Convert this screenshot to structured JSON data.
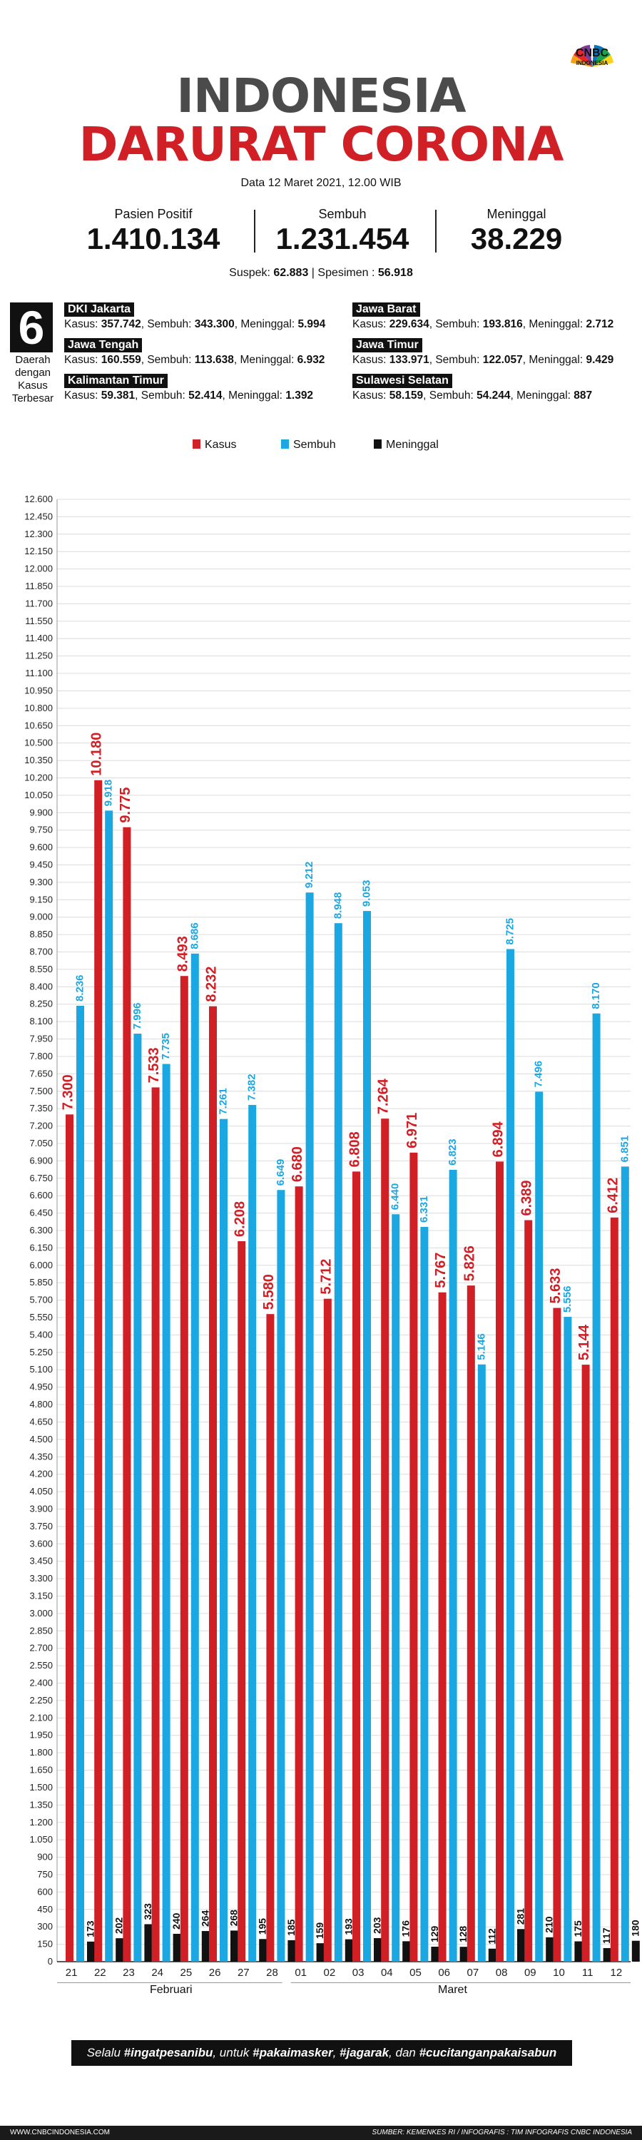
{
  "brand": {
    "logo_text": "CNBC",
    "logo_sub": "INDONESIA"
  },
  "title": {
    "line1": "INDONESIA",
    "line2": "DARURAT CORONA"
  },
  "date": "Data 12 Maret 2021, 12.00 WIB",
  "stats": [
    {
      "label": "Pasien Positif",
      "value": "1.410.134"
    },
    {
      "label": "Sembuh",
      "value": "1.231.454"
    },
    {
      "label": "Meninggal",
      "value": "38.229"
    }
  ],
  "suspek": {
    "label1": "Suspek:",
    "value1": "62.883",
    "sep": "|",
    "label2": "Spesimen :",
    "value2": "56.918"
  },
  "regions_box": {
    "number": "6",
    "caption": "Daerah dengan Kasus Terbesar"
  },
  "regions": [
    {
      "name": "DKI Jakarta",
      "kasus": "357.742",
      "sembuh": "343.300",
      "meninggal": "5.994"
    },
    {
      "name": "Jawa Barat",
      "kasus": "229.634",
      "sembuh": "193.816",
      "meninggal": "2.712"
    },
    {
      "name": "Jawa Tengah",
      "kasus": "160.559",
      "sembuh": "113.638",
      "meninggal": "6.932"
    },
    {
      "name": "Jawa Timur",
      "kasus": "133.971",
      "sembuh": "122.057",
      "meninggal": "9.429"
    },
    {
      "name": "Kalimantan Timur",
      "kasus": "59.381",
      "sembuh": "52.414",
      "meninggal": "1.392"
    },
    {
      "name": "Sulawesi Selatan",
      "kasus": "58.159",
      "sembuh": "54.244",
      "meninggal": "887"
    }
  ],
  "region_labels": {
    "kasus": "Kasus:",
    "sembuh": "Sembuh:",
    "meninggal": "Meninggal:"
  },
  "legend": [
    {
      "name": "Kasus",
      "color": "#d11f26"
    },
    {
      "name": "Sembuh",
      "color": "#1ba7e1"
    },
    {
      "name": "Meninggal",
      "color": "#111111"
    }
  ],
  "chart_data": {
    "type": "bar",
    "categories": [
      "21",
      "22",
      "23",
      "24",
      "25",
      "26",
      "27",
      "28",
      "01",
      "02",
      "03",
      "04",
      "05",
      "06",
      "07",
      "08",
      "09",
      "10",
      "11",
      "12"
    ],
    "months": [
      {
        "label": "Februari"
      },
      {
        "label": "Maret"
      }
    ],
    "ylim": [
      0,
      12600
    ],
    "ytick_step": 150,
    "grid": true,
    "legend_position": "top",
    "series": [
      {
        "name": "Kasus",
        "color": "#d11f26",
        "values": [
          7300,
          10180,
          9775,
          7533,
          8493,
          8232,
          6208,
          5580,
          6680,
          5712,
          6808,
          7264,
          6971,
          5767,
          5826,
          6894,
          6389,
          5633,
          5144,
          6412
        ],
        "labels": [
          "7.300",
          "10.180",
          "9.775",
          "7.533",
          "8.493",
          "8.232",
          "6.208",
          "5.580",
          "6.680",
          "5.712",
          "6.808",
          "7.264",
          "6.971",
          "5.767",
          "5.826",
          "6.894",
          "6.389",
          "5.633",
          "5.144",
          "6.412"
        ]
      },
      {
        "name": "Sembuh",
        "color": "#1ba7e1",
        "values": [
          8236,
          9918,
          7996,
          7735,
          8686,
          7261,
          7382,
          6649,
          9212,
          8948,
          9053,
          6440,
          6331,
          6823,
          5146,
          8725,
          7496,
          5556,
          8170,
          6851
        ],
        "labels": [
          "8.236",
          "9.918",
          "7.996",
          "7.735",
          "8.686",
          "7.261",
          "7.382",
          "6.649",
          "9.212",
          "8.948",
          "9.053",
          "6.440",
          "6.331",
          "6.823",
          "5.146",
          "8.725",
          "7.496",
          "5.556",
          "8.170",
          "6.851"
        ]
      },
      {
        "name": "Meninggal",
        "color": "#111111",
        "values": [
          173,
          202,
          323,
          240,
          264,
          268,
          195,
          185,
          159,
          193,
          203,
          176,
          129,
          128,
          112,
          281,
          210,
          175,
          117,
          180
        ],
        "labels": [
          "173",
          "202",
          "323",
          "240",
          "264",
          "268",
          "195",
          "185",
          "159",
          "193",
          "203",
          "176",
          "129",
          "128",
          "112",
          "281",
          "210",
          "175",
          "117",
          "180"
        ]
      }
    ]
  },
  "slogan": {
    "prefix": "Selalu ",
    "h1": "#ingatpesanibu",
    "mid1": ", untuk ",
    "h2": "#pakaimasker",
    "mid2": ", ",
    "h3": "#jagarak",
    "mid3": ", dan ",
    "h4": "#cucitanganpakaisabun"
  },
  "footer": {
    "left": "WWW.CNBCINDONESIA.COM",
    "right": "SUMBER: KEMENKES RI / INFOGRAFIS : TIM INFOGRAFIS CNBC INDONESIA"
  }
}
